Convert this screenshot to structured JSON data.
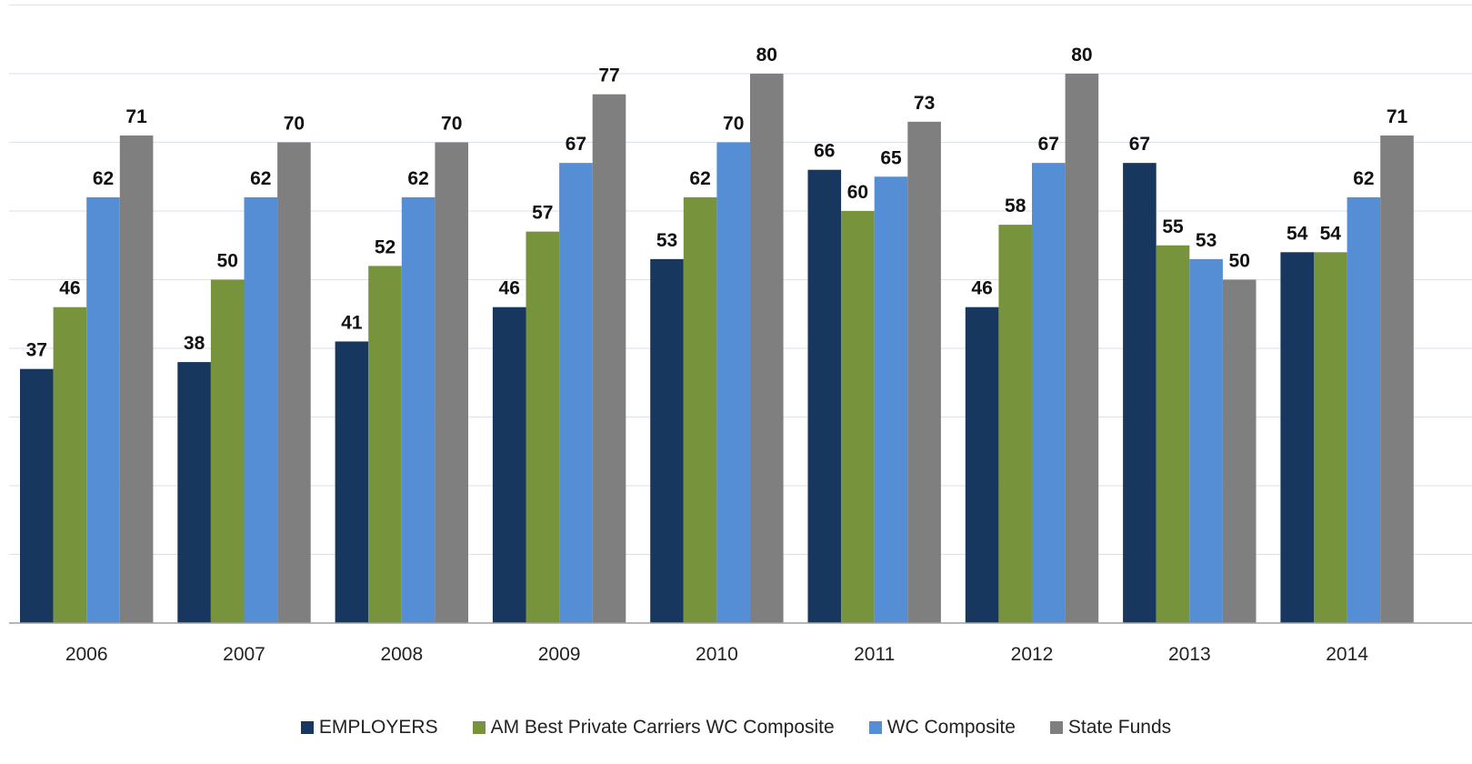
{
  "chart_data": {
    "type": "bar",
    "title": "",
    "xlabel": "",
    "ylabel": "",
    "ylim": [
      0,
      80
    ],
    "grid": true,
    "legend_position": "bottom",
    "categories": [
      "2006",
      "2007",
      "2008",
      "2009",
      "2010",
      "2011",
      "2012",
      "2013",
      "2014"
    ],
    "series": [
      {
        "name": "EMPLOYERS",
        "color": "#17375e",
        "values": [
          37,
          38,
          41,
          46,
          53,
          66,
          46,
          67,
          54
        ]
      },
      {
        "name": "AM Best Private Carriers WC Composite",
        "color": "#77933c",
        "values": [
          46,
          50,
          52,
          57,
          62,
          60,
          58,
          55,
          54
        ]
      },
      {
        "name": "WC Composite",
        "color": "#558ed5",
        "values": [
          62,
          62,
          62,
          67,
          70,
          65,
          67,
          53,
          62
        ]
      },
      {
        "name": "State Funds",
        "color": "#7f7f7f",
        "values": [
          71,
          70,
          70,
          77,
          80,
          73,
          80,
          50,
          71
        ]
      }
    ]
  }
}
